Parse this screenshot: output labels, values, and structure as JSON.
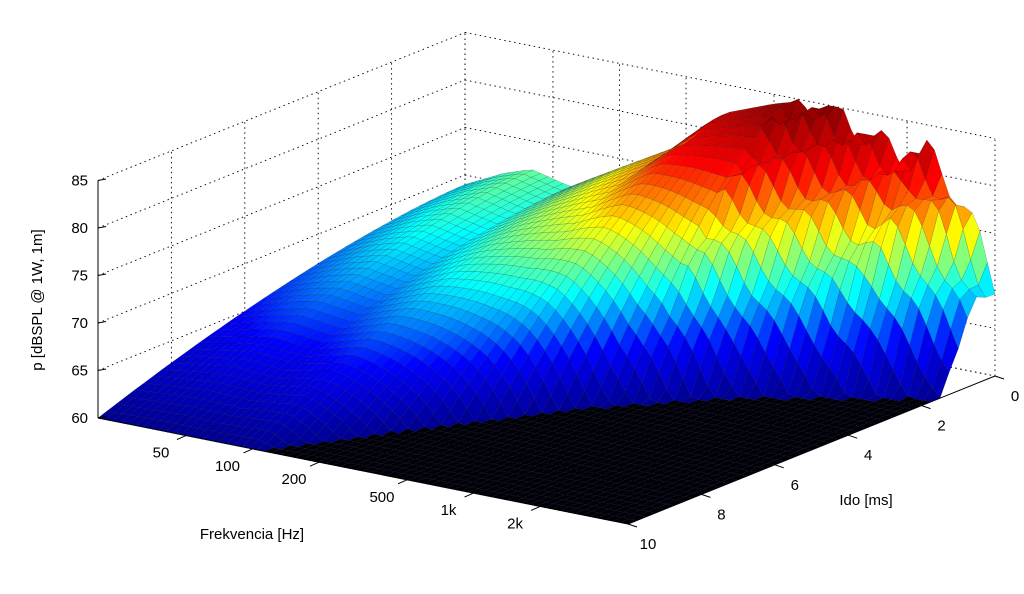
{
  "chart_data": {
    "type": "surface",
    "title": "",
    "zlabel": "p [dBSPL @ 1W, 1m]",
    "xlabel": "Frekvencia [Hz]",
    "ylabel": "Ido [ms]",
    "z_ticks": [
      "60",
      "65",
      "70",
      "75",
      "80",
      "85"
    ],
    "z_range": [
      60,
      85
    ],
    "freq_ticks": [
      "50",
      "100",
      "200",
      "500",
      "1k",
      "2k"
    ],
    "freq_tick_values": [
      50,
      100,
      200,
      500,
      1000,
      2000
    ],
    "freq_range_hz": [
      20,
      5000
    ],
    "time_ticks": [
      "0",
      "2",
      "4",
      "6",
      "8",
      "10"
    ],
    "time_range_ms": [
      0,
      10
    ],
    "grid": true,
    "colormap": "jet",
    "colors": [
      "#00008f",
      "#0000ff",
      "#00ffff",
      "#ffff00",
      "#ff0000",
      "#800000"
    ],
    "front_slice_t0": [
      {
        "f": 20,
        "z": 69
      },
      {
        "f": 30,
        "z": 71
      },
      {
        "f": 40,
        "z": 72
      },
      {
        "f": 60,
        "z": 71
      },
      {
        "f": 100,
        "z": 74
      },
      {
        "f": 200,
        "z": 78
      },
      {
        "f": 300,
        "z": 82
      },
      {
        "f": 500,
        "z": 84
      },
      {
        "f": 700,
        "z": 85
      },
      {
        "f": 1000,
        "z": 84
      },
      {
        "f": 1500,
        "z": 82
      },
      {
        "f": 2000,
        "z": 81
      },
      {
        "f": 2500,
        "z": 82
      },
      {
        "f": 3500,
        "z": 78
      },
      {
        "f": 5000,
        "z": 70
      }
    ],
    "decay_ms": [
      {
        "f": 20,
        "t": 10
      },
      {
        "f": 50,
        "t": 10
      },
      {
        "f": 100,
        "t": 10
      },
      {
        "f": 200,
        "t": 8
      },
      {
        "f": 500,
        "t": 5
      },
      {
        "f": 1000,
        "t": 3.5
      },
      {
        "f": 2000,
        "t": 2.5
      },
      {
        "f": 5000,
        "t": 1.5
      }
    ]
  }
}
